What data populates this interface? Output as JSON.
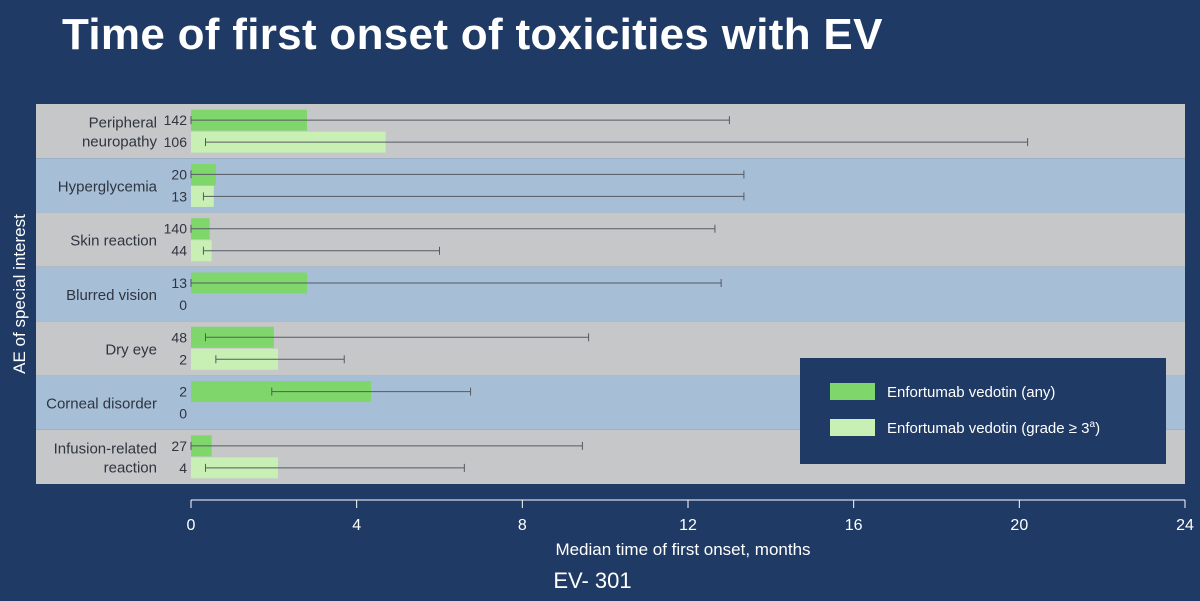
{
  "title": "Time of first onset of toxicities with EV",
  "footer": "EV- 301",
  "colors": {
    "background": "#1f3a64",
    "row_gray": "#c6c7c9",
    "row_blue": "#a7bfd6",
    "series_any": "#7fd66b",
    "series_grade3": "#c8efb4",
    "legend_bg": "#1f3a64"
  },
  "chart_data": {
    "type": "bar",
    "orientation": "horizontal",
    "title": "Time of first onset of toxicities with EV",
    "xlabel": "Median time of first onset, months",
    "ylabel": "AE of special interest",
    "xlim": [
      0,
      24
    ],
    "xticks": [
      0,
      4,
      8,
      12,
      16,
      20,
      24
    ],
    "grid": false,
    "legend_position": "right",
    "categories": [
      {
        "lines": [
          "Peripheral",
          "neuropathy"
        ]
      },
      {
        "lines": [
          "Hyperglycemia"
        ]
      },
      {
        "lines": [
          "Skin reaction"
        ]
      },
      {
        "lines": [
          "Blurred vision"
        ]
      },
      {
        "lines": [
          "Dry eye"
        ]
      },
      {
        "lines": [
          "Corneal disorder"
        ]
      },
      {
        "lines": [
          "Infusion-related",
          "reaction"
        ]
      }
    ],
    "series": [
      {
        "name": "Enfortumab vedotin (any)",
        "values": [
          2.8,
          0.6,
          0.45,
          2.8,
          2.0,
          4.35,
          0.5
        ],
        "n": [
          "142",
          "20",
          "140",
          "13",
          "48",
          "2",
          "27"
        ],
        "range_low": [
          0.0,
          0.0,
          0.0,
          0.0,
          0.35,
          1.95,
          0.0
        ],
        "range_high": [
          13.0,
          13.35,
          12.65,
          12.8,
          9.6,
          6.75,
          9.45
        ]
      },
      {
        "name": "Enfortumab vedotin (grade ≥ 3",
        "name_sup": "a",
        "name_suffix": ")",
        "values": [
          4.7,
          0.55,
          0.5,
          null,
          2.1,
          null,
          2.1
        ],
        "n": [
          "106",
          "13",
          "44",
          "0",
          "2",
          "0",
          "4"
        ],
        "range_low": [
          0.35,
          0.3,
          0.3,
          null,
          0.6,
          null,
          0.35
        ],
        "range_high": [
          20.2,
          13.35,
          6.0,
          null,
          3.7,
          null,
          6.6
        ]
      }
    ]
  }
}
